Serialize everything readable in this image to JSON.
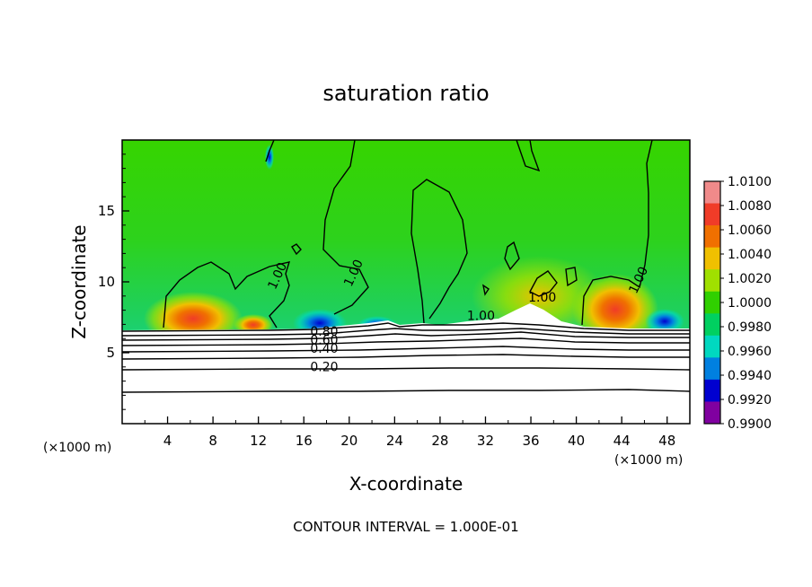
{
  "chart_data": {
    "type": "heatmap",
    "title": "saturation ratio",
    "xlabel": "X-coordinate",
    "ylabel": "Z-coordinate",
    "x_unit_left": "(×1000 m)",
    "x_unit_right": "(×1000 m)",
    "xlim": [
      0,
      50
    ],
    "ylim": [
      0,
      20
    ],
    "x_ticks": [
      4,
      8,
      12,
      16,
      20,
      24,
      28,
      32,
      36,
      40,
      44,
      48
    ],
    "y_ticks": [
      5,
      10,
      15
    ],
    "colorbar": {
      "levels": [
        "1.0100",
        "1.0080",
        "1.0060",
        "1.0040",
        "1.0020",
        "1.0000",
        "0.9980",
        "0.9960",
        "0.9940",
        "0.9920",
        "0.9900"
      ],
      "colors": [
        "#f08a8a",
        "#f03c28",
        "#f07000",
        "#f0c000",
        "#a0e000",
        "#30d000",
        "#00d060",
        "#00d8c0",
        "#0080e0",
        "#0000d0",
        "#8000a0"
      ]
    },
    "contour_labels": [
      {
        "text": "1.00",
        "x": 14.0,
        "z": 10.3
      },
      {
        "text": "1.00",
        "x": 20.7,
        "z": 10.5
      },
      {
        "text": "1.00",
        "x": 31.6,
        "z": 7.3
      },
      {
        "text": "1.00",
        "x": 37.0,
        "z": 8.6
      },
      {
        "text": "1.00",
        "x": 45.8,
        "z": 10.0
      },
      {
        "text": "0.80",
        "x": 17.8,
        "z": 6.2
      },
      {
        "text": "0.60",
        "x": 17.8,
        "z": 5.6
      },
      {
        "text": "0.40",
        "x": 17.8,
        "z": 5.0
      },
      {
        "text": "0.20",
        "x": 17.8,
        "z": 3.7
      }
    ],
    "footer": "CONTOUR INTERVAL = 1.000E-01"
  }
}
